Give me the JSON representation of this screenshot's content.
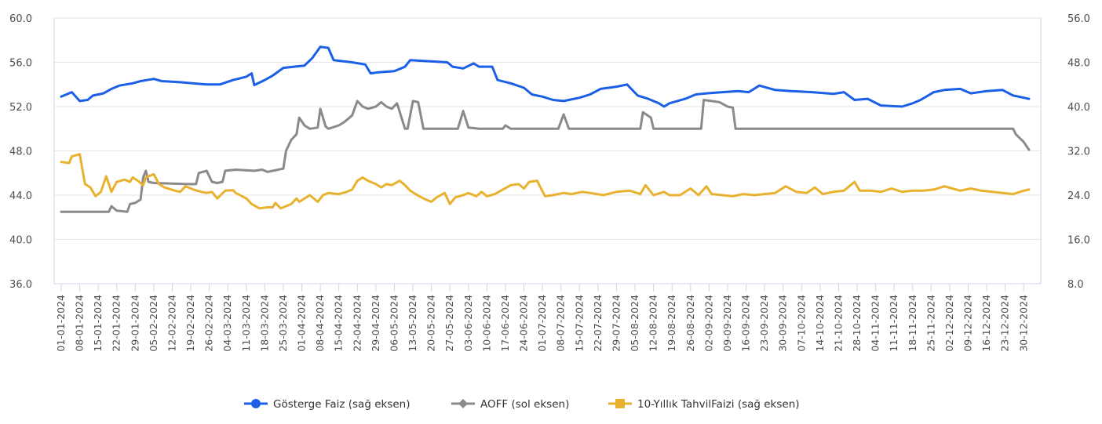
{
  "chart_data": {
    "type": "line",
    "title": "",
    "y_left": {
      "ticks": [
        "60.0",
        "56.0",
        "52.0",
        "48.0",
        "44.0",
        "40.0",
        "36.0"
      ],
      "ylim": [
        36,
        60
      ]
    },
    "y_right": {
      "ticks": [
        "56.0",
        "48.0",
        "40.0",
        "32.0",
        "24.0",
        "16.0",
        "8.0"
      ],
      "ylim": [
        8,
        56
      ]
    },
    "x_categories": [
      "01-01-2024",
      "08-01-2024",
      "15-01-2024",
      "22-01-2024",
      "29-01-2024",
      "05-02-2024",
      "12-02-2024",
      "19-02-2024",
      "26-02-2024",
      "04-03-2024",
      "11-03-2024",
      "18-03-2024",
      "25-03-2024",
      "01-04-2024",
      "08-04-2024",
      "15-04-2024",
      "22-04-2024",
      "29-04-2024",
      "06-05-2024",
      "13-05-2024",
      "20-05-2024",
      "27-05-2024",
      "03-06-2024",
      "10-06-2024",
      "17-06-2024",
      "24-06-2024",
      "01-07-2024",
      "08-07-2024",
      "15-07-2024",
      "22-07-2024",
      "29-07-2024",
      "05-08-2024",
      "12-08-2024",
      "19-08-2024",
      "26-08-2024",
      "02-09-2024",
      "09-09-2024",
      "16-09-2024",
      "23-09-2024",
      "30-09-2024",
      "07-10-2024",
      "14-10-2024",
      "21-10-2024",
      "28-10-2024",
      "04-11-2024",
      "11-11-2024",
      "18-11-2024",
      "25-11-2024",
      "02-12-2024",
      "09-12-2024",
      "16-12-2024",
      "23-12-2024",
      "30-12-2024"
    ],
    "x_range_days": [
      0,
      366
    ],
    "grid": true,
    "legend_position": "bottom",
    "series": [
      {
        "name": "Gösterge Faiz (sağ eksen)",
        "axis": "right",
        "color": "#1a5fe6",
        "marker": "circle",
        "points": [
          [
            0,
            41.8
          ],
          [
            4,
            42.6
          ],
          [
            7,
            41.0
          ],
          [
            10,
            41.2
          ],
          [
            12,
            42.0
          ],
          [
            16,
            42.4
          ],
          [
            19,
            43.2
          ],
          [
            22,
            43.8
          ],
          [
            27,
            44.2
          ],
          [
            30,
            44.6
          ],
          [
            35,
            45.0
          ],
          [
            38,
            44.6
          ],
          [
            45,
            44.4
          ],
          [
            55,
            44.0
          ],
          [
            60,
            44.0
          ],
          [
            65,
            44.8
          ],
          [
            70,
            45.4
          ],
          [
            72,
            46.0
          ],
          [
            73,
            43.9
          ],
          [
            77,
            44.8
          ],
          [
            80,
            45.6
          ],
          [
            84,
            47.0
          ],
          [
            88,
            47.2
          ],
          [
            92,
            47.4
          ],
          [
            95,
            48.8
          ],
          [
            98,
            50.8
          ],
          [
            101,
            50.6
          ],
          [
            103,
            48.4
          ],
          [
            110,
            48.0
          ],
          [
            115,
            47.6
          ],
          [
            117,
            46.0
          ],
          [
            120,
            46.2
          ],
          [
            126,
            46.4
          ],
          [
            130,
            47.2
          ],
          [
            132,
            48.4
          ],
          [
            139,
            48.2
          ],
          [
            146,
            48.0
          ],
          [
            148,
            47.2
          ],
          [
            152,
            46.9
          ],
          [
            156,
            47.8
          ],
          [
            158,
            47.2
          ],
          [
            163,
            47.2
          ],
          [
            165,
            44.8
          ],
          [
            170,
            44.2
          ],
          [
            175,
            43.4
          ],
          [
            178,
            42.2
          ],
          [
            182,
            41.8
          ],
          [
            186,
            41.2
          ],
          [
            190,
            41.0
          ],
          [
            196,
            41.6
          ],
          [
            200,
            42.2
          ],
          [
            204,
            43.2
          ],
          [
            210,
            43.6
          ],
          [
            214,
            44.0
          ],
          [
            218,
            42.0
          ],
          [
            222,
            41.4
          ],
          [
            226,
            40.6
          ],
          [
            228,
            40.0
          ],
          [
            230,
            40.6
          ],
          [
            236,
            41.4
          ],
          [
            240,
            42.2
          ],
          [
            244,
            42.4
          ],
          [
            250,
            42.6
          ],
          [
            256,
            42.8
          ],
          [
            260,
            42.6
          ],
          [
            264,
            43.8
          ],
          [
            270,
            43.0
          ],
          [
            276,
            42.8
          ],
          [
            284,
            42.6
          ],
          [
            292,
            42.3
          ],
          [
            296,
            42.6
          ],
          [
            300,
            41.2
          ],
          [
            305,
            41.4
          ],
          [
            310,
            40.2
          ],
          [
            318,
            40.0
          ],
          [
            322,
            40.6
          ],
          [
            325,
            41.2
          ],
          [
            330,
            42.6
          ],
          [
            334,
            43.0
          ],
          [
            340,
            43.2
          ],
          [
            344,
            42.4
          ],
          [
            350,
            42.8
          ],
          [
            356,
            43.0
          ],
          [
            360,
            42.0
          ],
          [
            364,
            41.6
          ],
          [
            366,
            41.4
          ]
        ]
      },
      {
        "name": "AOFF (sol eksen)",
        "axis": "left",
        "color": "#8a8a8a",
        "marker": "diamond",
        "points": [
          [
            0,
            42.5
          ],
          [
            15,
            42.5
          ],
          [
            18,
            42.5
          ],
          [
            19,
            43.0
          ],
          [
            21,
            42.6
          ],
          [
            25,
            42.5
          ],
          [
            26,
            43.2
          ],
          [
            28,
            43.3
          ],
          [
            30,
            43.6
          ],
          [
            31,
            45.6
          ],
          [
            32,
            46.2
          ],
          [
            33,
            45.2
          ],
          [
            35,
            45.1
          ],
          [
            48,
            45.0
          ],
          [
            51,
            45.0
          ],
          [
            52,
            46.0
          ],
          [
            55,
            46.2
          ],
          [
            57,
            45.2
          ],
          [
            59,
            45.1
          ],
          [
            61,
            45.2
          ],
          [
            62,
            46.2
          ],
          [
            66,
            46.3
          ],
          [
            73,
            46.2
          ],
          [
            76,
            46.3
          ],
          [
            78,
            46.1
          ],
          [
            82,
            46.3
          ],
          [
            84,
            46.4
          ],
          [
            85,
            48.0
          ],
          [
            87,
            49.0
          ],
          [
            89,
            49.5
          ],
          [
            90,
            51.0
          ],
          [
            92,
            50.3
          ],
          [
            94,
            50.0
          ],
          [
            97,
            50.1
          ],
          [
            98,
            51.8
          ],
          [
            100,
            50.2
          ],
          [
            101,
            50.0
          ],
          [
            105,
            50.3
          ],
          [
            107,
            50.6
          ],
          [
            110,
            51.2
          ],
          [
            112,
            52.5
          ],
          [
            114,
            52.0
          ],
          [
            116,
            51.8
          ],
          [
            119,
            52.0
          ],
          [
            121,
            52.4
          ],
          [
            123,
            52.0
          ],
          [
            125,
            51.8
          ],
          [
            127,
            52.3
          ],
          [
            130,
            50.0
          ],
          [
            131,
            50.0
          ],
          [
            133,
            52.5
          ],
          [
            135,
            52.4
          ],
          [
            137,
            50.0
          ],
          [
            150,
            50.0
          ],
          [
            152,
            51.6
          ],
          [
            154,
            50.1
          ],
          [
            158,
            50.0
          ],
          [
            167,
            50.0
          ],
          [
            168,
            50.3
          ],
          [
            170,
            50.0
          ],
          [
            188,
            50.0
          ],
          [
            190,
            51.3
          ],
          [
            192,
            50.0
          ],
          [
            219,
            50.0
          ],
          [
            220,
            51.5
          ],
          [
            223,
            51.0
          ],
          [
            224,
            50.0
          ],
          [
            242,
            50.0
          ],
          [
            243,
            52.6
          ],
          [
            249,
            52.4
          ],
          [
            252,
            52.0
          ],
          [
            254,
            51.9
          ],
          [
            255,
            50.0
          ],
          [
            260,
            50.0
          ],
          [
            360,
            50.0
          ],
          [
            361,
            49.5
          ],
          [
            364,
            48.8
          ],
          [
            366,
            48.1
          ]
        ]
      },
      {
        "name": "10-Yıllık TahvilFaizi (sağ eksen)",
        "axis": "right",
        "color": "#e8b22e",
        "marker": "square",
        "points": [
          [
            0,
            30.0
          ],
          [
            3,
            29.8
          ],
          [
            4,
            31.0
          ],
          [
            7,
            31.4
          ],
          [
            9,
            26.0
          ],
          [
            11,
            25.4
          ],
          [
            13,
            23.8
          ],
          [
            15,
            24.6
          ],
          [
            17,
            27.4
          ],
          [
            19,
            24.6
          ],
          [
            21,
            26.4
          ],
          [
            24,
            26.8
          ],
          [
            26,
            26.4
          ],
          [
            27,
            27.2
          ],
          [
            29,
            26.6
          ],
          [
            31,
            25.8
          ],
          [
            32,
            27.2
          ],
          [
            35,
            27.8
          ],
          [
            37,
            26.0
          ],
          [
            39,
            25.4
          ],
          [
            43,
            24.8
          ],
          [
            45,
            24.6
          ],
          [
            47,
            25.6
          ],
          [
            50,
            25.0
          ],
          [
            53,
            24.6
          ],
          [
            55,
            24.4
          ],
          [
            57,
            24.6
          ],
          [
            59,
            23.4
          ],
          [
            62,
            24.8
          ],
          [
            65,
            24.9
          ],
          [
            66,
            24.4
          ],
          [
            70,
            23.4
          ],
          [
            72,
            22.4
          ],
          [
            75,
            21.6
          ],
          [
            78,
            21.8
          ],
          [
            80,
            21.8
          ],
          [
            81,
            22.6
          ],
          [
            83,
            21.6
          ],
          [
            87,
            22.4
          ],
          [
            89,
            23.4
          ],
          [
            90,
            22.8
          ],
          [
            94,
            24.0
          ],
          [
            97,
            22.8
          ],
          [
            99,
            24.0
          ],
          [
            101,
            24.4
          ],
          [
            105,
            24.2
          ],
          [
            108,
            24.6
          ],
          [
            110,
            25.0
          ],
          [
            112,
            26.6
          ],
          [
            114,
            27.2
          ],
          [
            116,
            26.6
          ],
          [
            119,
            26.0
          ],
          [
            121,
            25.4
          ],
          [
            123,
            26.0
          ],
          [
            125,
            25.8
          ],
          [
            128,
            26.6
          ],
          [
            130,
            25.8
          ],
          [
            132,
            24.8
          ],
          [
            134,
            24.2
          ],
          [
            137,
            23.4
          ],
          [
            140,
            22.8
          ],
          [
            142,
            23.6
          ],
          [
            145,
            24.4
          ],
          [
            147,
            22.4
          ],
          [
            149,
            23.6
          ],
          [
            152,
            24.0
          ],
          [
            154,
            24.4
          ],
          [
            157,
            23.8
          ],
          [
            159,
            24.6
          ],
          [
            161,
            23.8
          ],
          [
            164,
            24.2
          ],
          [
            167,
            25.0
          ],
          [
            170,
            25.8
          ],
          [
            173,
            26.0
          ],
          [
            175,
            25.2
          ],
          [
            177,
            26.4
          ],
          [
            180,
            26.6
          ],
          [
            181,
            25.6
          ],
          [
            183,
            23.8
          ],
          [
            186,
            24.0
          ],
          [
            190,
            24.4
          ],
          [
            193,
            24.2
          ],
          [
            197,
            24.6
          ],
          [
            200,
            24.4
          ],
          [
            205,
            24.0
          ],
          [
            210,
            24.6
          ],
          [
            215,
            24.8
          ],
          [
            219,
            24.2
          ],
          [
            221,
            25.8
          ],
          [
            224,
            24.0
          ],
          [
            228,
            24.6
          ],
          [
            230,
            24.0
          ],
          [
            234,
            24.0
          ],
          [
            238,
            25.2
          ],
          [
            241,
            24.0
          ],
          [
            244,
            25.6
          ],
          [
            246,
            24.2
          ],
          [
            250,
            24.0
          ],
          [
            254,
            23.8
          ],
          [
            258,
            24.2
          ],
          [
            262,
            24.0
          ],
          [
            266,
            24.2
          ],
          [
            270,
            24.4
          ],
          [
            274,
            25.6
          ],
          [
            278,
            24.6
          ],
          [
            282,
            24.4
          ],
          [
            285,
            25.4
          ],
          [
            288,
            24.2
          ],
          [
            292,
            24.6
          ],
          [
            296,
            24.8
          ],
          [
            300,
            26.4
          ],
          [
            302,
            24.8
          ],
          [
            306,
            24.8
          ],
          [
            310,
            24.6
          ],
          [
            314,
            25.2
          ],
          [
            318,
            24.6
          ],
          [
            322,
            24.8
          ],
          [
            326,
            24.8
          ],
          [
            330,
            25.0
          ],
          [
            334,
            25.6
          ],
          [
            337,
            25.2
          ],
          [
            340,
            24.8
          ],
          [
            344,
            25.2
          ],
          [
            348,
            24.8
          ],
          [
            352,
            24.6
          ],
          [
            356,
            24.4
          ],
          [
            360,
            24.2
          ],
          [
            364,
            24.8
          ],
          [
            366,
            25.0
          ]
        ]
      }
    ]
  }
}
